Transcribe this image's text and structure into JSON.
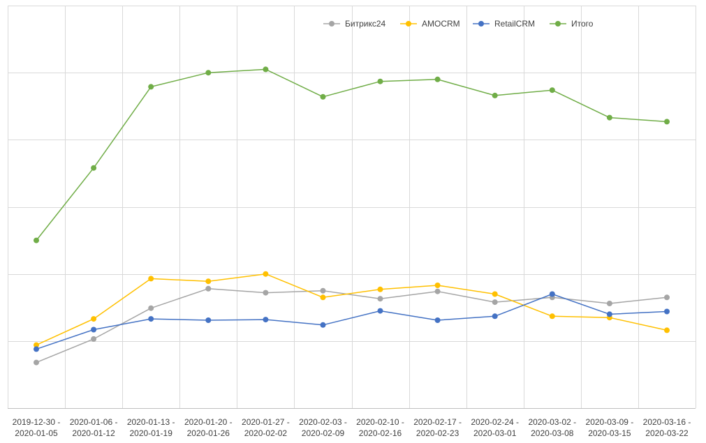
{
  "chart_data": {
    "type": "line",
    "title": "",
    "xlabel": "",
    "ylabel": "",
    "ylim": [
      0,
      600
    ],
    "y_gridlines": [
      100,
      200,
      300,
      400,
      500,
      600
    ],
    "y_tick_labels_shown": false,
    "grid": true,
    "legend_position": "top-right",
    "categories": [
      [
        "2019-12-30 -",
        "2020-01-05"
      ],
      [
        "2020-01-06 -",
        "2020-01-12"
      ],
      [
        "2020-01-13 -",
        "2020-01-19"
      ],
      [
        "2020-01-20 -",
        "2020-01-26"
      ],
      [
        "2020-01-27 -",
        "2020-02-02"
      ],
      [
        "2020-02-03 -",
        "2020-02-09"
      ],
      [
        "2020-02-10 -",
        "2020-02-16"
      ],
      [
        "2020-02-17 -",
        "2020-02-23"
      ],
      [
        "2020-02-24 -",
        "2020-03-01"
      ],
      [
        "2020-03-02 -",
        "2020-03-08"
      ],
      [
        "2020-03-09 -",
        "2020-03-15"
      ],
      [
        "2020-03-16 -",
        "2020-03-22"
      ]
    ],
    "series": [
      {
        "name": "Битрикс24",
        "color": "#a5a5a5",
        "values": [
          68,
          103,
          149,
          178,
          172,
          175,
          163,
          174,
          158,
          165,
          156,
          165
        ]
      },
      {
        "name": "AMOCRM",
        "color": "#ffc000",
        "values": [
          94,
          133,
          193,
          189,
          200,
          165,
          177,
          183,
          170,
          137,
          135,
          116
        ]
      },
      {
        "name": "RetailCRM",
        "color": "#4472c4",
        "values": [
          88,
          117,
          133,
          131,
          132,
          124,
          145,
          131,
          137,
          170,
          140,
          144
        ]
      },
      {
        "name": "Итого",
        "color": "#70ad47",
        "values": [
          250,
          358,
          479,
          500,
          505,
          464,
          487,
          490,
          466,
          474,
          433,
          427
        ]
      }
    ]
  }
}
